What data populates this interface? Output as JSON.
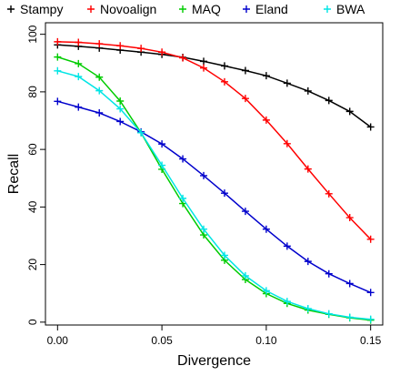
{
  "chart_data": {
    "type": "line",
    "title": "",
    "xlabel": "Divergence",
    "ylabel": "Recall",
    "xlim": [
      -0.0058,
      0.1558
    ],
    "ylim": [
      -1,
      104
    ],
    "x_ticks": [
      0.0,
      0.05,
      0.1,
      0.15
    ],
    "x_tick_labels": [
      "0.00",
      "0.05",
      "0.10",
      "0.15"
    ],
    "y_ticks": [
      0,
      20,
      40,
      60,
      80,
      100
    ],
    "y_tick_labels": [
      "0",
      "20",
      "40",
      "60",
      "80",
      "100"
    ],
    "grid": false,
    "marker": "+",
    "legend": {
      "position": "top",
      "layout": "horizontal"
    },
    "x": [
      0.0,
      0.01,
      0.02,
      0.03,
      0.04,
      0.05,
      0.06,
      0.07,
      0.08,
      0.09,
      0.1,
      0.11,
      0.12,
      0.13,
      0.14,
      0.15
    ],
    "series": [
      {
        "name": "Stampy",
        "color": "#000000",
        "values": [
          96.3,
          95.8,
          95.2,
          94.5,
          93.8,
          93.0,
          92.0,
          90.6,
          89.0,
          87.4,
          85.6,
          83.0,
          80.3,
          77.0,
          73.2,
          67.8
        ]
      },
      {
        "name": "Novoalign",
        "color": "#ff0000",
        "values": [
          97.4,
          97.2,
          96.7,
          96.0,
          95.1,
          93.8,
          91.8,
          88.3,
          83.5,
          77.7,
          70.2,
          62.0,
          53.2,
          44.6,
          36.3,
          28.8
        ]
      },
      {
        "name": "MAQ",
        "color": "#00cc00",
        "values": [
          92.1,
          89.8,
          85.1,
          76.8,
          65.8,
          53.1,
          41.2,
          30.3,
          21.5,
          14.8,
          9.9,
          6.5,
          4.2,
          2.7,
          1.5,
          0.7
        ]
      },
      {
        "name": "Eland",
        "color": "#0000cc",
        "values": [
          76.7,
          74.7,
          72.7,
          69.7,
          66.1,
          61.9,
          56.7,
          50.9,
          44.8,
          38.5,
          32.3,
          26.4,
          21.1,
          16.8,
          13.4,
          10.3
        ]
      },
      {
        "name": "BWA",
        "color": "#00e5e5",
        "values": [
          87.3,
          85.3,
          80.4,
          74.1,
          65.8,
          54.5,
          43.0,
          32.3,
          23.2,
          16.1,
          10.9,
          7.2,
          4.7,
          2.9,
          1.7,
          1.0
        ]
      }
    ]
  }
}
